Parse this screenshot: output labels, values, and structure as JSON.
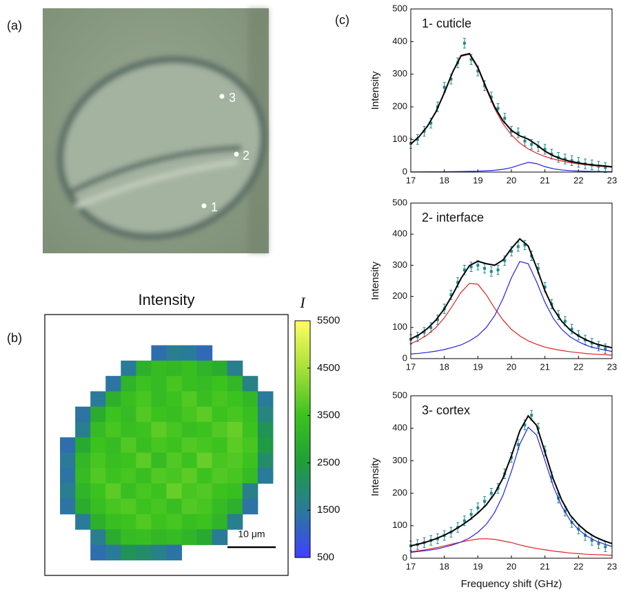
{
  "panel_labels": [
    "(a)",
    "(b)",
    "(c)"
  ],
  "micrograph": {
    "points": [
      "1",
      "2",
      "3"
    ]
  },
  "chart_data": [
    {
      "type": "heatmap",
      "title": "Intensity",
      "colorbar_label": "I",
      "scale_bar": "10 μm",
      "clim": [
        500,
        5500
      ],
      "colorbar_ticks": [
        500,
        1500,
        2500,
        3500,
        4500,
        5500
      ],
      "colormap": [
        "#4040ff",
        "#2a7a9a",
        "#1f9e3a",
        "#3cc21e",
        "#a8e03a",
        "#ffff60"
      ],
      "values": [
        [
          null,
          null,
          null,
          null,
          null,
          null,
          null,
          null,
          null,
          null,
          null,
          null,
          null,
          null,
          null,
          null
        ],
        [
          null,
          null,
          null,
          null,
          null,
          null,
          null,
          null,
          null,
          null,
          null,
          null,
          null,
          null,
          null,
          null
        ],
        [
          null,
          null,
          null,
          null,
          null,
          null,
          null,
          1300,
          1600,
          1500,
          1200,
          null,
          null,
          null,
          null,
          null
        ],
        [
          null,
          null,
          null,
          null,
          null,
          1500,
          3000,
          3300,
          3200,
          3400,
          3100,
          2900,
          1600,
          null,
          null,
          null
        ],
        [
          null,
          null,
          null,
          null,
          1400,
          3100,
          3500,
          3300,
          3600,
          3400,
          3300,
          3500,
          3200,
          1700,
          null,
          null
        ],
        [
          null,
          null,
          null,
          1500,
          3000,
          3400,
          3600,
          3300,
          3500,
          3700,
          3400,
          3600,
          3500,
          3200,
          1500,
          null
        ],
        [
          null,
          null,
          1400,
          2900,
          3500,
          3300,
          3700,
          3500,
          3400,
          3600,
          3800,
          3500,
          3600,
          3400,
          1800,
          null
        ],
        [
          null,
          null,
          1600,
          3300,
          3600,
          3400,
          3500,
          3800,
          3600,
          3400,
          3500,
          3700,
          3900,
          3500,
          2200,
          null
        ],
        [
          null,
          1300,
          2800,
          3500,
          3300,
          3700,
          3400,
          3600,
          3500,
          3700,
          3600,
          3500,
          3800,
          3600,
          2400,
          null
        ],
        [
          null,
          1500,
          3200,
          3600,
          3400,
          3500,
          3800,
          3300,
          3700,
          3500,
          3900,
          3600,
          3700,
          3500,
          2000,
          null
        ],
        [
          null,
          1400,
          3300,
          3700,
          3500,
          3600,
          3400,
          3700,
          3600,
          3800,
          3500,
          3700,
          3600,
          3300,
          1500,
          null
        ],
        [
          null,
          1600,
          3100,
          3500,
          3800,
          3400,
          3600,
          3500,
          3900,
          3600,
          3700,
          3500,
          3400,
          1700,
          null,
          null
        ],
        [
          null,
          1400,
          2900,
          3400,
          3600,
          3700,
          3500,
          3600,
          3400,
          3700,
          3600,
          3300,
          3000,
          1400,
          null,
          null
        ],
        [
          null,
          null,
          1500,
          3000,
          3400,
          3500,
          3700,
          3500,
          3600,
          3400,
          3500,
          3100,
          1600,
          null,
          null,
          null
        ],
        [
          null,
          null,
          null,
          1600,
          2900,
          3300,
          3400,
          3200,
          3300,
          3100,
          2800,
          1500,
          null,
          null,
          null,
          null
        ],
        [
          null,
          null,
          null,
          1300,
          1500,
          2200,
          2000,
          1700,
          1400,
          null,
          null,
          null,
          null,
          null,
          null,
          null
        ],
        [
          null,
          null,
          null,
          null,
          null,
          null,
          null,
          null,
          null,
          null,
          null,
          null,
          null,
          null,
          null,
          null
        ]
      ]
    },
    {
      "type": "line",
      "title": "1- cuticle",
      "ylabel": "Intensity",
      "xlim": [
        17,
        23
      ],
      "xticks": [
        17,
        18,
        19,
        20,
        21,
        22,
        23
      ],
      "ylim": [
        0,
        500
      ],
      "yticks": [
        0,
        100,
        200,
        300,
        400,
        500
      ],
      "x": [
        17,
        17.25,
        17.5,
        17.75,
        18,
        18.25,
        18.5,
        18.75,
        19,
        19.25,
        19.5,
        19.75,
        20,
        20.25,
        20.5,
        20.75,
        21,
        21.25,
        21.5,
        21.75,
        22,
        22.25,
        22.5,
        22.75,
        23
      ],
      "series": [
        {
          "color": "#e02020",
          "values": [
            85,
            108,
            141,
            185,
            242,
            306,
            355,
            361,
            318,
            254,
            195,
            148,
            114,
            89,
            71,
            58,
            48,
            40,
            34,
            29,
            25,
            22,
            19,
            17,
            15
          ]
        },
        {
          "color": "#2020e0",
          "values": [
            0.6,
            0.7,
            0.8,
            0.9,
            1.1,
            1.4,
            1.7,
            2.1,
            2.8,
            3.9,
            5.5,
            8.4,
            13.6,
            22.1,
            29.7,
            25.9,
            16.6,
            10.1,
            6.5,
            4.4,
            3.2,
            2.4,
            1.9,
            1.5,
            1.2
          ]
        },
        {
          "color": "#000000",
          "values": [
            86,
            109,
            141,
            185,
            243,
            307,
            357,
            363,
            321,
            258,
            200,
            157,
            128,
            111,
            101,
            84,
            64,
            50,
            40,
            33,
            28,
            24,
            21,
            19,
            16
          ]
        }
      ],
      "points": {
        "color": "#1f8a8a",
        "error": 15,
        "x": [
          17,
          17.2,
          17.4,
          17.6,
          17.8,
          18,
          18.2,
          18.4,
          18.6,
          18.8,
          19,
          19.2,
          19.4,
          19.6,
          19.8,
          20,
          20.2,
          20.4,
          20.6,
          20.8,
          21,
          21.2,
          21.4,
          21.6,
          21.8,
          22,
          22.2,
          22.4,
          22.6,
          22.8
        ],
        "values": [
          88,
          100,
          125,
          150,
          200,
          260,
          285,
          335,
          395,
          345,
          310,
          265,
          230,
          195,
          165,
          125,
          120,
          95,
          85,
          78,
          70,
          55,
          45,
          40,
          35,
          30,
          25,
          22,
          18,
          14
        ]
      }
    },
    {
      "type": "line",
      "title": "2- interface",
      "ylabel": "Intensity",
      "xlim": [
        17,
        23
      ],
      "xticks": [
        17,
        18,
        19,
        20,
        21,
        22,
        23
      ],
      "ylim": [
        0,
        500
      ],
      "yticks": [
        0,
        100,
        200,
        300,
        400,
        500
      ],
      "x": [
        17,
        17.25,
        17.5,
        17.75,
        18,
        18.25,
        18.5,
        18.75,
        19,
        19.25,
        19.5,
        19.75,
        20,
        20.25,
        20.5,
        20.75,
        21,
        21.25,
        21.5,
        21.75,
        22,
        22.25,
        22.5,
        22.75,
        23
      ],
      "series": [
        {
          "color": "#e02020",
          "values": [
            48,
            60,
            77,
            100,
            131,
            171,
            213,
            242,
            239,
            205,
            162,
            124,
            94,
            73,
            57,
            46,
            37,
            31,
            26,
            22,
            19,
            16,
            14,
            13,
            11
          ]
        },
        {
          "color": "#2020e0",
          "values": [
            15,
            17,
            20,
            24,
            29,
            36,
            44,
            57,
            74,
            100,
            138,
            193,
            260,
            312,
            305,
            247,
            181,
            129,
            94,
            70,
            54,
            42,
            34,
            28,
            23
          ]
        },
        {
          "color": "#000000",
          "values": [
            63,
            77,
            97,
            124,
            160,
            206,
            258,
            299,
            313,
            305,
            300,
            317,
            354,
            385,
            362,
            293,
            218,
            160,
            120,
            92,
            73,
            59,
            48,
            41,
            35
          ]
        }
      ],
      "points": {
        "color": "#1f8a8a",
        "error": 15,
        "x": [
          17,
          17.2,
          17.4,
          17.6,
          17.8,
          18,
          18.2,
          18.4,
          18.6,
          18.8,
          19,
          19.2,
          19.4,
          19.6,
          19.8,
          20,
          20.2,
          20.4,
          20.6,
          20.8,
          21,
          21.2,
          21.4,
          21.6,
          21.8,
          22,
          22.2,
          22.4,
          22.6,
          22.8
        ],
        "values": [
          62,
          70,
          85,
          100,
          125,
          160,
          205,
          245,
          285,
          295,
          300,
          290,
          280,
          285,
          315,
          345,
          360,
          365,
          330,
          290,
          230,
          175,
          140,
          120,
          95,
          75,
          60,
          50,
          40,
          32
        ]
      }
    },
    {
      "type": "line",
      "title": "3- cortex",
      "ylabel": "Intensity",
      "xlabel": "Frequency shift (GHz)",
      "xlim": [
        17,
        23
      ],
      "xticks": [
        17,
        18,
        19,
        20,
        21,
        22,
        23
      ],
      "ylim": [
        0,
        500
      ],
      "yticks": [
        0,
        100,
        200,
        300,
        400,
        500
      ],
      "x": [
        17,
        17.25,
        17.5,
        17.75,
        18,
        18.25,
        18.5,
        18.75,
        19,
        19.25,
        19.5,
        19.75,
        20,
        20.25,
        20.5,
        20.75,
        21,
        21.25,
        21.5,
        21.75,
        22,
        22.25,
        22.5,
        22.75,
        23
      ],
      "series": [
        {
          "color": "#e02020",
          "values": [
            20,
            23,
            27,
            32,
            38,
            44,
            50,
            55,
            59,
            60,
            58,
            53,
            48,
            41,
            35,
            30,
            26,
            22,
            19,
            16,
            14,
            12,
            11,
            10,
            9
          ]
        },
        {
          "color": "#2020e0",
          "values": [
            18,
            21,
            24,
            28,
            34,
            41,
            50,
            62,
            80,
            104,
            141,
            194,
            267,
            351,
            403,
            379,
            301,
            221,
            160,
            117,
            88,
            68,
            54,
            44,
            36
          ]
        },
        {
          "color": "#000000",
          "values": [
            38,
            44,
            51,
            60,
            71,
            84,
            100,
            118,
            139,
            164,
            199,
            247,
            315,
            392,
            438,
            409,
            327,
            243,
            179,
            133,
            103,
            81,
            65,
            54,
            45
          ]
        }
      ],
      "points": {
        "color": "#1f8a8a",
        "error": 15,
        "x": [
          17,
          17.2,
          17.4,
          17.6,
          17.8,
          18,
          18.2,
          18.4,
          18.6,
          18.8,
          19,
          19.2,
          19.4,
          19.6,
          19.8,
          20,
          20.2,
          20.4,
          20.6,
          20.8,
          21,
          21.2,
          21.4,
          21.6,
          21.8,
          22,
          22.2,
          22.4,
          22.6,
          22.8
        ],
        "values": [
          38,
          42,
          48,
          55,
          60,
          70,
          80,
          95,
          115,
          135,
          155,
          175,
          200,
          215,
          260,
          310,
          350,
          410,
          440,
          400,
          330,
          250,
          185,
          145,
          110,
          90,
          70,
          55,
          45,
          35
        ]
      }
    }
  ]
}
